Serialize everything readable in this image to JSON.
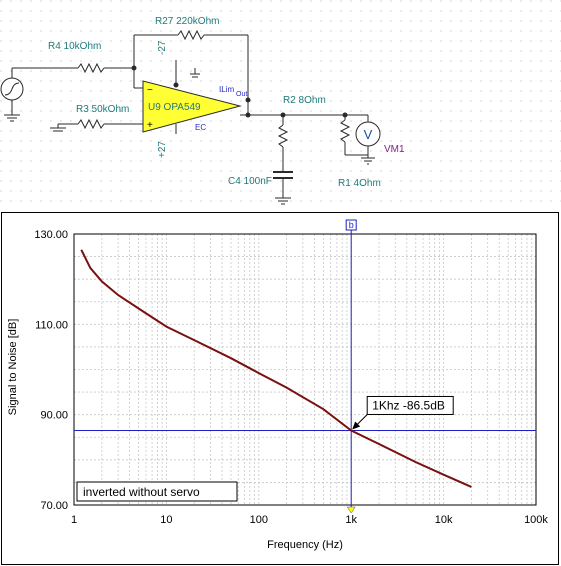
{
  "schematic": {
    "labels": {
      "r4": "R4 10kOhm",
      "r27": "R27 220kOhm",
      "r3": "R3 50kOhm",
      "u9": "U9 OPA549",
      "r2": "R2 8Ohm",
      "c4": "C4 100nF",
      "r1": "R1 4Ohm",
      "vm1": "VM1",
      "neg_supply": "-27",
      "pos_supply": "+27",
      "ilim": "ILim",
      "ec": "EC",
      "out_pin": "Out",
      "vm_symbol": "V"
    },
    "colors": {
      "wire": "#2a2a2a",
      "label": "#1f7a7a",
      "opamp_fill": "#ffff33",
      "pin_label": "#2c2cc4",
      "vm1_label": "#8b1a8b"
    }
  },
  "chart_data": {
    "type": "line",
    "xlabel": "Frequency (Hz)",
    "ylabel": "Signal to Noise [dB]",
    "x_scale": "log",
    "xlim": [
      1,
      100000
    ],
    "ylim": [
      70,
      130
    ],
    "x_ticks": [
      1,
      10,
      100,
      1000,
      10000,
      100000
    ],
    "x_tick_labels": [
      "1",
      "10",
      "100",
      "1k",
      "10k",
      "100k"
    ],
    "y_ticks": [
      70,
      90,
      110,
      130
    ],
    "y_tick_labels": [
      "70.00",
      "90.00",
      "110.00",
      "130.00"
    ],
    "grid": true,
    "series": [
      {
        "name": "inverted without servo",
        "color": "#7a1010",
        "x": [
          1.2,
          1.5,
          2,
          3,
          5,
          10,
          20,
          50,
          100,
          200,
          500,
          1000,
          2000,
          5000,
          10000,
          20000
        ],
        "y": [
          126.5,
          122.5,
          119.5,
          116.5,
          113.5,
          109.5,
          106.5,
          102.5,
          99.2,
          96,
          91.2,
          86.5,
          83.5,
          79.5,
          76.7,
          74
        ]
      }
    ],
    "cursor": {
      "label": "b",
      "x": 1000,
      "y": 86.5,
      "annotation": "1Khz -86.5dB",
      "color": "#1f1fc8"
    },
    "legend_text": "inverted without servo"
  }
}
